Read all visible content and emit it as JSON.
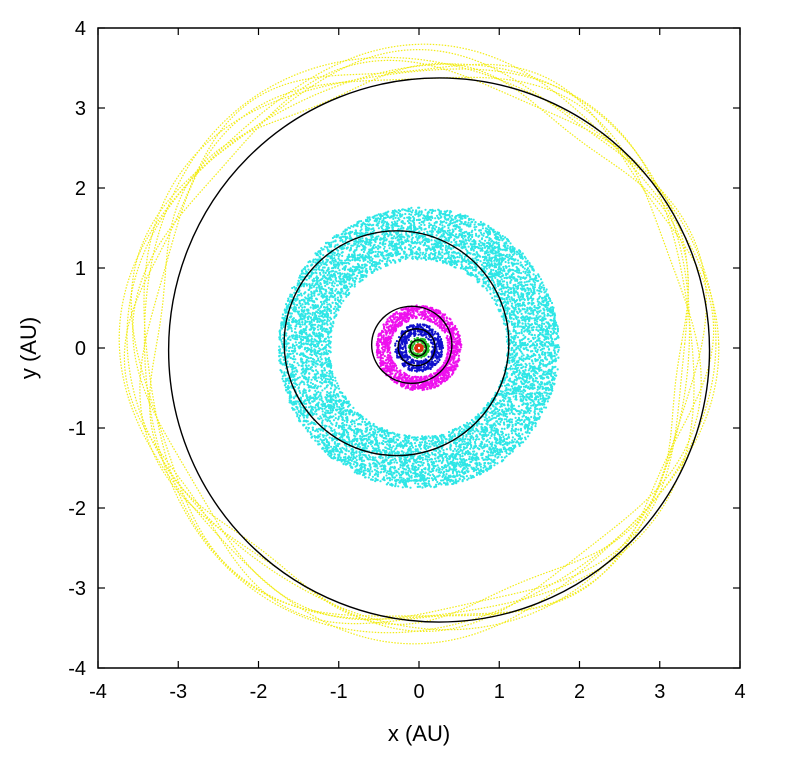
{
  "chart_data": {
    "type": "scatter",
    "title": "",
    "xlabel": "x (AU)",
    "ylabel": "y (AU)",
    "xlim": [
      -4,
      4
    ],
    "ylim": [
      -4,
      4
    ],
    "xticks": [
      -4,
      -3,
      -2,
      -1,
      0,
      1,
      2,
      3,
      4
    ],
    "yticks": [
      -4,
      -3,
      -2,
      -1,
      0,
      1,
      2,
      3,
      4
    ],
    "grid": false,
    "legend": "none",
    "series": [
      {
        "color": "#f2ec16",
        "kind": "band-orbit",
        "center": [
          0.0,
          0.05
        ],
        "r_inner": 3.28,
        "r_outer": 3.68,
        "stroke_type": "strands"
      },
      {
        "color": "#2ee6e6",
        "kind": "band",
        "center": [
          0.0,
          0.0
        ],
        "r_inner": 1.1,
        "r_outer": 1.75
      },
      {
        "color": "#ee10ee",
        "kind": "band",
        "center": [
          0.0,
          0.0
        ],
        "r_inner": 0.36,
        "r_outer": 0.53
      },
      {
        "color": "#1010cc",
        "kind": "band",
        "center": [
          0.0,
          0.0
        ],
        "r_inner": 0.16,
        "r_outer": 0.3
      },
      {
        "color": "#22bb22",
        "kind": "band",
        "center": [
          0.0,
          0.0
        ],
        "r_inner": 0.07,
        "r_outer": 0.13
      },
      {
        "color": "#dd3311",
        "kind": "band",
        "center": [
          0.0,
          0.0
        ],
        "r_inner": 0.025,
        "r_outer": 0.05
      }
    ],
    "reference_orbits": [
      {
        "color": "#000000",
        "cx": 0.25,
        "cy": -0.025,
        "rx": 3.37,
        "ry": 3.39
      },
      {
        "color": "#000000",
        "cx": -0.28,
        "cy": 0.06,
        "rx": 1.4,
        "ry": 1.4
      },
      {
        "color": "#000000",
        "cx": -0.09,
        "cy": 0.04,
        "rx": 0.5,
        "ry": 0.48
      },
      {
        "color": "#000000",
        "cx": -0.03,
        "cy": 0.01,
        "rx": 0.23,
        "ry": 0.23
      },
      {
        "color": "#000000",
        "cx": -0.01,
        "cy": 0.0,
        "rx": 0.1,
        "ry": 0.1
      }
    ]
  }
}
